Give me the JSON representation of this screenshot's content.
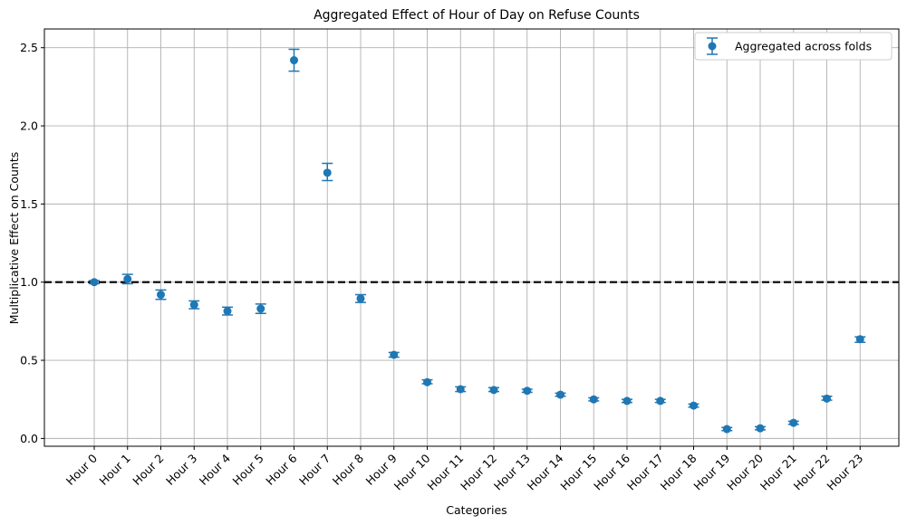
{
  "chart_data": {
    "type": "scatter",
    "title": "Aggregated Effect of Hour of Day on Refuse Counts",
    "xlabel": "Categories",
    "ylabel": "Multiplicative Effect on Counts",
    "categories": [
      "Hour 0",
      "Hour 1",
      "Hour 2",
      "Hour 3",
      "Hour 4",
      "Hour 5",
      "Hour 6",
      "Hour 7",
      "Hour 8",
      "Hour 9",
      "Hour 10",
      "Hour 11",
      "Hour 12",
      "Hour 13",
      "Hour 14",
      "Hour 15",
      "Hour 16",
      "Hour 17",
      "Hour 18",
      "Hour 19",
      "Hour 20",
      "Hour 21",
      "Hour 22",
      "Hour 23"
    ],
    "ylim": [
      -0.05,
      2.62
    ],
    "yticks": [
      0.0,
      0.5,
      1.0,
      1.5,
      2.0,
      2.5
    ],
    "ytick_labels": [
      "0.0",
      "0.5",
      "1.0",
      "1.5",
      "2.0",
      "2.5"
    ],
    "reference_line": {
      "y": 1.0,
      "style": "dashed",
      "color": "#000000"
    },
    "grid": true,
    "legend_position": "top-right",
    "series": [
      {
        "name": "Aggregated across folds",
        "color": "#1f77b4",
        "values": [
          1.0,
          1.02,
          0.92,
          0.855,
          0.815,
          0.83,
          2.42,
          1.7,
          0.895,
          0.535,
          0.36,
          0.315,
          0.31,
          0.305,
          0.28,
          0.25,
          0.24,
          0.24,
          0.21,
          0.06,
          0.065,
          0.1,
          0.255,
          0.635
        ],
        "err_low": [
          0.99,
          0.99,
          0.89,
          0.83,
          0.79,
          0.8,
          2.35,
          1.65,
          0.87,
          0.52,
          0.35,
          0.3,
          0.3,
          0.295,
          0.27,
          0.24,
          0.23,
          0.23,
          0.2,
          0.05,
          0.055,
          0.09,
          0.245,
          0.615
        ],
        "err_high": [
          1.01,
          1.05,
          0.95,
          0.88,
          0.84,
          0.86,
          2.49,
          1.76,
          0.92,
          0.55,
          0.375,
          0.33,
          0.325,
          0.315,
          0.29,
          0.26,
          0.25,
          0.25,
          0.22,
          0.07,
          0.075,
          0.11,
          0.27,
          0.65
        ]
      }
    ]
  }
}
